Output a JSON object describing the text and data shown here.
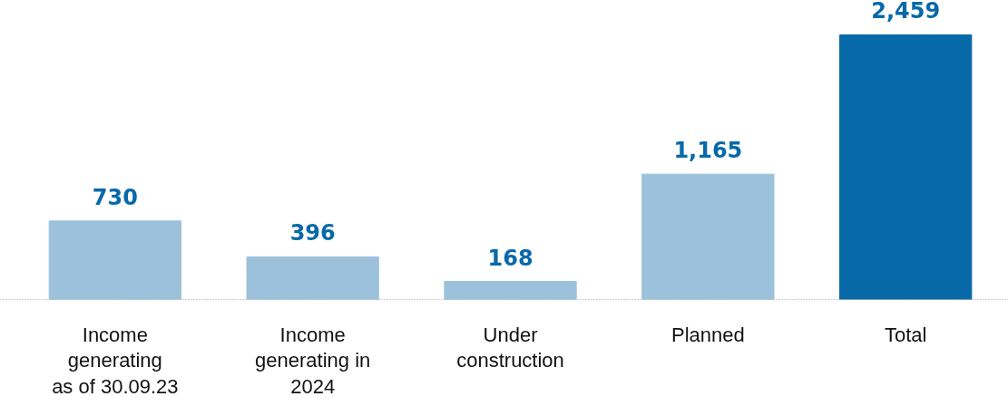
{
  "chart_data": {
    "type": "bar",
    "categories": [
      "Income\ngenerating\nas of 30.09.23",
      "Income\ngenerating in\n2024",
      "Under\nconstruction",
      "Planned",
      "Total"
    ],
    "values": [
      730,
      396,
      168,
      1165,
      2459
    ],
    "value_labels": [
      "730",
      "396",
      "168",
      "1,165",
      "2,459"
    ],
    "colors": [
      "#9cc2db",
      "#9cc2db",
      "#9cc2db",
      "#9cc2db",
      "#0869a8"
    ],
    "grid": false,
    "tick_labels": "x"
  }
}
